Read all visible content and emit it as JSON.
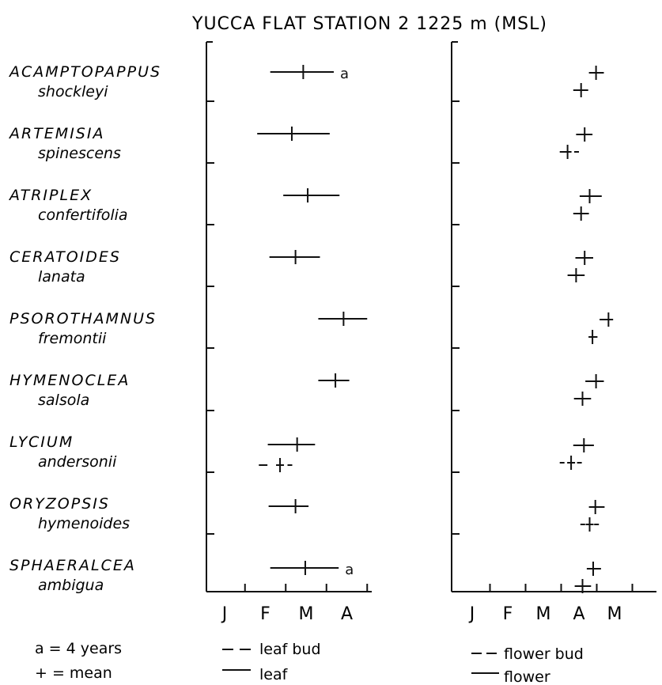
{
  "chart_data": {
    "type": "range",
    "title": "YUCCA FLAT STATION 2",
    "elevation": "1225 m (MSL)",
    "species": [
      {
        "genus": "ACAMPTOPAPPUS",
        "epithet": "shockleyi",
        "leaf": {
          "start": 2.12,
          "mean": 2.93,
          "end": 3.68
        },
        "leaf_bud": null,
        "flower": {
          "start": 4.28,
          "mean": 4.48,
          "end": 4.7
        },
        "flower_bud": {
          "start": 3.84,
          "mean": 4.06,
          "end": 4.26
        },
        "note": "a"
      },
      {
        "genus": "ARTEMISIA",
        "epithet": "spinescens",
        "leaf": {
          "start": 1.8,
          "mean": 2.65,
          "end": 3.58
        },
        "leaf_bud": null,
        "flower": {
          "start": 3.92,
          "mean": 4.16,
          "end": 4.38
        },
        "flower_bud": {
          "start": 3.46,
          "mean": 3.68,
          "end": 4.0
        },
        "note": ""
      },
      {
        "genus": "ATRIPLEX",
        "epithet": "confertifolia",
        "leaf": {
          "start": 2.44,
          "mean": 3.04,
          "end": 3.82
        },
        "leaf_bud": null,
        "flower": {
          "start": 4.02,
          "mean": 4.3,
          "end": 4.64
        },
        "flower_bud": {
          "start": 3.84,
          "mean": 4.06,
          "end": 4.28
        },
        "note": ""
      },
      {
        "genus": "CERATOIDES",
        "epithet": "lanata",
        "leaf": {
          "start": 2.1,
          "mean": 2.74,
          "end": 3.34
        },
        "leaf_bud": null,
        "flower": {
          "start": 3.9,
          "mean": 4.16,
          "end": 4.4
        },
        "flower_bud": {
          "start": 3.68,
          "mean": 3.92,
          "end": 4.16
        },
        "note": ""
      },
      {
        "genus": "PSOROTHAMNUS",
        "epithet": "fremontii",
        "leaf": {
          "start": 3.3,
          "mean": 3.92,
          "end": 4.5
        },
        "leaf_bud": null,
        "flower": {
          "start": 4.58,
          "mean": 4.83,
          "end": 4.96
        },
        "flower_bud": {
          "start": 4.28,
          "mean": 4.38,
          "end": 4.52
        },
        "note": ""
      },
      {
        "genus": "HYMENOCLEA",
        "epithet": "salsola",
        "leaf": {
          "start": 3.3,
          "mean": 3.72,
          "end": 4.06
        },
        "leaf_bud": null,
        "flower": {
          "start": 4.18,
          "mean": 4.48,
          "end": 4.7
        },
        "flower_bud": {
          "start": 3.86,
          "mean": 4.1,
          "end": 4.34
        },
        "note": ""
      },
      {
        "genus": "LYCIUM",
        "epithet": "andersonii",
        "leaf": {
          "start": 2.06,
          "mean": 2.78,
          "end": 3.22
        },
        "leaf_bud": {
          "start": 1.84,
          "mean": 2.36,
          "end": 2.66
        },
        "flower": {
          "start": 3.84,
          "mean": 4.14,
          "end": 4.42
        },
        "flower_bud": {
          "start": 3.46,
          "mean": 3.78,
          "end": 4.08
        },
        "note": ""
      },
      {
        "genus": "ORYZOPSIS",
        "epithet": "hymenoides",
        "leaf": {
          "start": 2.08,
          "mean": 2.74,
          "end": 3.06
        },
        "leaf_bud": null,
        "flower": {
          "start": 4.28,
          "mean": 4.46,
          "end": 4.72
        },
        "flower_bud": {
          "start": 4.04,
          "mean": 4.3,
          "end": 4.56
        },
        "note": ""
      },
      {
        "genus": "SPHAERALCEA",
        "epithet": "ambigua",
        "leaf": {
          "start": 2.12,
          "mean": 2.98,
          "end": 3.8
        },
        "leaf_bud": null,
        "flower": {
          "start": 4.22,
          "mean": 4.4,
          "end": 4.62
        },
        "flower_bud": {
          "start": 3.88,
          "mean": 4.1,
          "end": 4.34
        },
        "note": "a"
      }
    ],
    "panels": [
      {
        "id": "leaf-panel",
        "ticks": [
          "J",
          "F",
          "M",
          "A"
        ],
        "xlim": [
          0.5,
          4.5
        ]
      },
      {
        "id": "flower-panel",
        "ticks": [
          "J",
          "F",
          "M",
          "A",
          "M"
        ],
        "xlim": [
          0.5,
          5.0
        ]
      }
    ],
    "legend": {
      "note_a": "a = 4 years",
      "mean": "+ = mean",
      "leaf_bud": "leaf bud",
      "leaf": "leaf",
      "flower_bud": "flower bud",
      "flower": "flower"
    }
  }
}
